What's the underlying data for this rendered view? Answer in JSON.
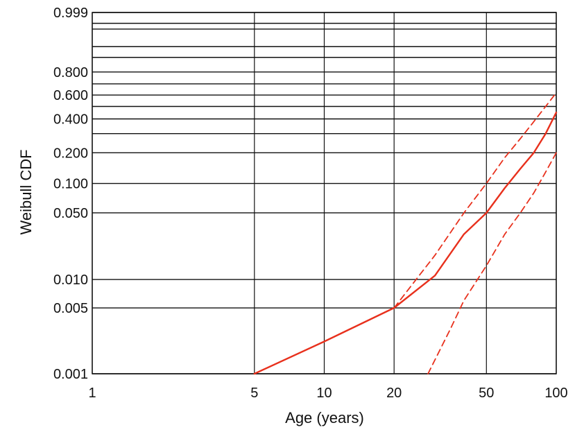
{
  "chart_data": {
    "type": "line",
    "title": "",
    "xlabel": "Age (years)",
    "ylabel": "Weibull CDF",
    "x_scale": "log",
    "y_scale": "weibull",
    "xlim": [
      1,
      100
    ],
    "ylim": [
      0.001,
      0.999
    ],
    "x_ticks": [
      1,
      5,
      10,
      20,
      50,
      100
    ],
    "x_tick_labels": [
      "1",
      "5",
      "10",
      "20",
      "50",
      "100"
    ],
    "y_ticks": [
      0.001,
      0.005,
      0.01,
      0.05,
      0.1,
      0.2,
      0.4,
      0.6,
      0.8,
      0.999
    ],
    "y_tick_labels": [
      "0.001",
      "0.005",
      "0.010",
      "0.050",
      "0.100",
      "0.200",
      "0.400",
      "0.600",
      "0.800",
      "0.999"
    ],
    "y_extra_gridlines": [
      0.3,
      0.5,
      0.7,
      0.9,
      0.95,
      0.99,
      0.995
    ],
    "grid": true,
    "legend": "none",
    "colors": {
      "curve": "#e8301c",
      "grid": "#111111"
    },
    "series": [
      {
        "style": "solid",
        "x": [
          5,
          10,
          20,
          30,
          40,
          50,
          60,
          70,
          80,
          90,
          100
        ],
        "y": [
          0.001,
          0.0022,
          0.005,
          0.011,
          0.03,
          0.05,
          0.09,
          0.14,
          0.2,
          0.3,
          0.45
        ]
      },
      {
        "style": "dashed",
        "x": [
          20,
          30,
          40,
          50,
          60,
          70,
          80,
          90,
          100
        ],
        "y": [
          0.005,
          0.018,
          0.05,
          0.1,
          0.18,
          0.27,
          0.38,
          0.5,
          0.62
        ]
      },
      {
        "style": "dashed",
        "x": [
          28,
          35,
          40,
          50,
          60,
          70,
          80,
          90,
          100
        ],
        "y": [
          0.001,
          0.003,
          0.006,
          0.014,
          0.03,
          0.05,
          0.08,
          0.13,
          0.2
        ]
      }
    ]
  }
}
